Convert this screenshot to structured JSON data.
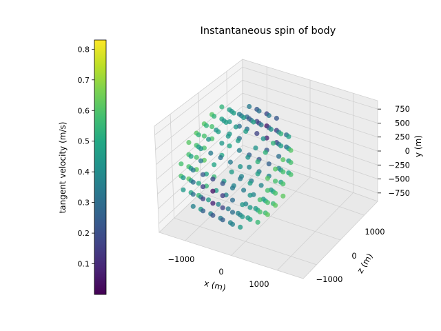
{
  "chart_data": {
    "type": "scatter",
    "projection": "3d",
    "title": "Instantaneous spin of body",
    "xlabel": "x (m)",
    "ylabel": "y (m)",
    "zlabel": "z (m)",
    "x_ticks": [
      "−1000",
      "0",
      "1000"
    ],
    "z_ticks": [
      "−1000",
      "0",
      "1000"
    ],
    "y_ticks": [
      "750",
      "500",
      "250",
      "0",
      "−250",
      "−500",
      "−750"
    ],
    "colorbar": {
      "label": "tangent velocity (m/s)",
      "colormap": "viridis",
      "ticks": [
        "0.1",
        "0.2",
        "0.3",
        "0.4",
        "0.5",
        "0.6",
        "0.7",
        "0.8"
      ],
      "range": [
        0.0,
        0.83
      ]
    },
    "grid": true,
    "body": {
      "shape": "ellipsoid",
      "x_range": [
        -1300,
        1300
      ],
      "y_range": [
        -850,
        850
      ],
      "z_range": [
        -1100,
        1100
      ],
      "spin_axis": "z",
      "velocity_range": [
        0.0,
        0.83
      ]
    }
  }
}
